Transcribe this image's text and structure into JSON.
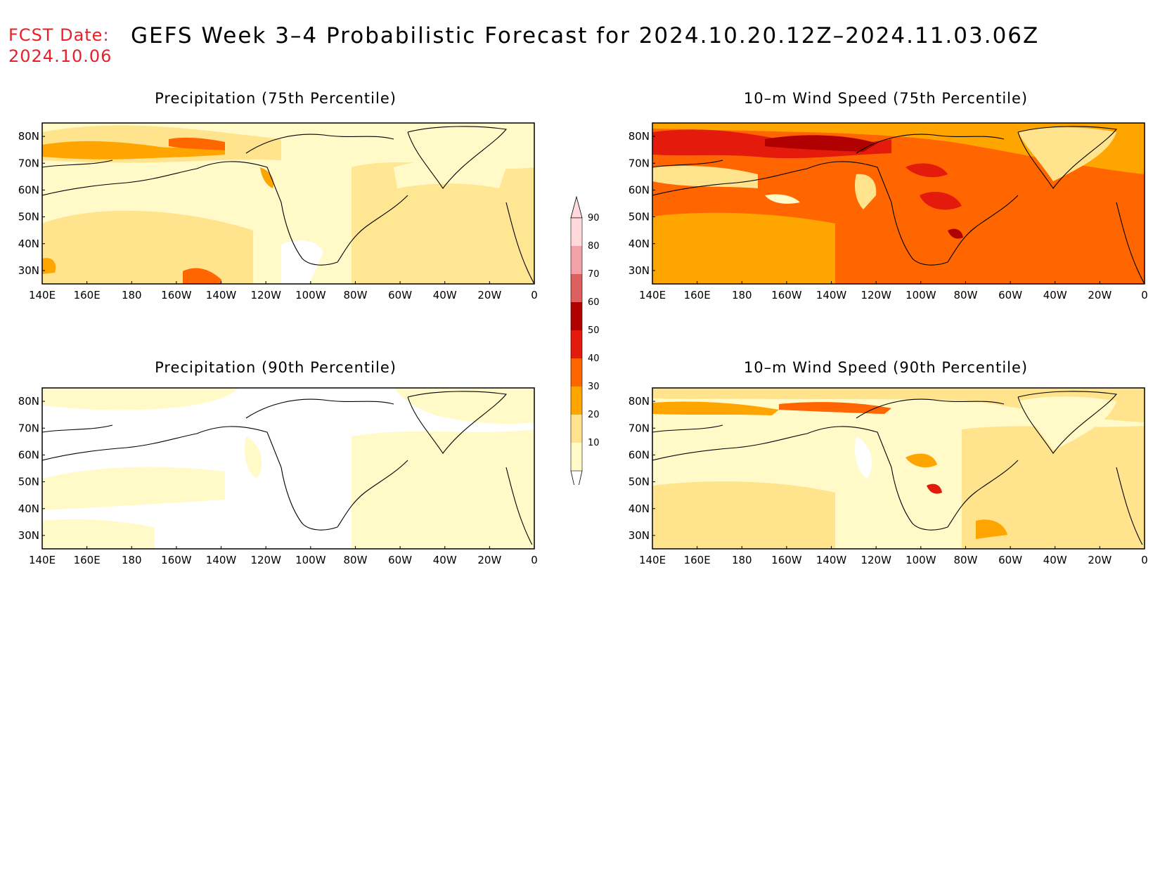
{
  "header": {
    "fcst_label": "FCST Date:",
    "fcst_date": "2024.10.06",
    "title": "GEFS Week 3–4 Probabilistic Forecast for 2024.10.20.12Z–2024.11.03.06Z"
  },
  "axes": {
    "lon_labels": [
      "140E",
      "160E",
      "180",
      "160W",
      "140W",
      "120W",
      "100W",
      "80W",
      "60W",
      "40W",
      "20W",
      "0"
    ],
    "lat_labels": [
      "80N",
      "70N",
      "60N",
      "50N",
      "40N",
      "30N"
    ],
    "lat_values": [
      80,
      70,
      60,
      50,
      40,
      30
    ],
    "lat_range": [
      25,
      85
    ],
    "lon_range": [
      "140E",
      "0"
    ]
  },
  "colorbar": {
    "levels": [
      "10",
      "20",
      "30",
      "40",
      "50",
      "60",
      "70",
      "80",
      "90"
    ],
    "colors": [
      "#fffac8",
      "#ffe38d",
      "#ffa500",
      "#ff6600",
      "#e31a0c",
      "#b00000",
      "#dc6060",
      "#f2a1a8",
      "#ffd9dc"
    ]
  },
  "panels": [
    {
      "title": "Precipitation (75th Percentile)",
      "dominant_category": "10-20",
      "max_category": "40-50"
    },
    {
      "title": "10–m Wind Speed (75th Percentile)",
      "dominant_category": "40-50",
      "max_category": "60-70"
    },
    {
      "title": "Precipitation (90th Percentile)",
      "dominant_category": "<10",
      "max_category": "20-30"
    },
    {
      "title": "10–m Wind Speed (90th Percentile)",
      "dominant_category": "10-20",
      "max_category": "50-60"
    }
  ]
}
